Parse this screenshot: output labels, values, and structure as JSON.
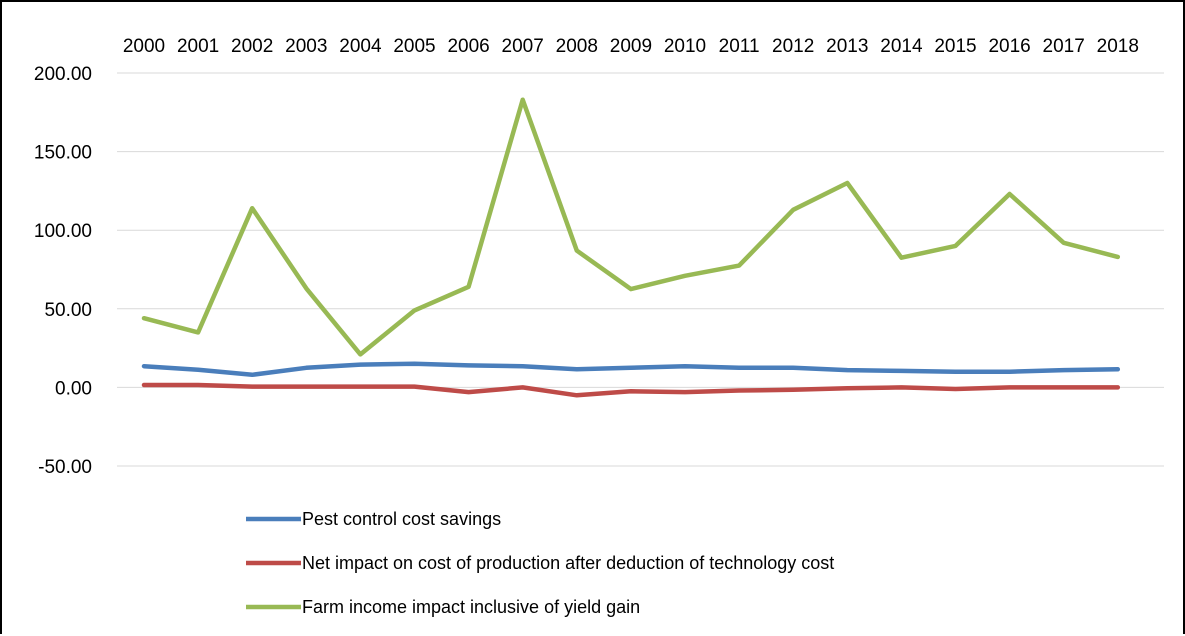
{
  "chart_data": {
    "type": "line",
    "title": "",
    "xlabel": "",
    "ylabel": "",
    "x": [
      "2000",
      "2001",
      "2002",
      "2003",
      "2004",
      "2005",
      "2006",
      "2007",
      "2008",
      "2009",
      "2010",
      "2011",
      "2012",
      "2013",
      "2014",
      "2015",
      "2016",
      "2017",
      "2018"
    ],
    "ylim": [
      -50,
      200
    ],
    "yticks": [
      "200.00",
      "150.00",
      "100.00",
      "50.00",
      "0.00",
      "-50.00"
    ],
    "ytick_values": [
      200,
      150,
      100,
      50,
      0,
      -50
    ],
    "grid": true,
    "legend_position": "bottom",
    "series": [
      {
        "name": "Pest control cost savings",
        "color": "#4a7ebb",
        "values": [
          13.5,
          11.2,
          8.0,
          12.5,
          14.5,
          15.0,
          14.0,
          13.5,
          11.5,
          12.5,
          13.5,
          12.5,
          12.5,
          11.0,
          10.5,
          10.0,
          10.0,
          11.0,
          11.5
        ]
      },
      {
        "name": "Net impact on cost of production after deduction of technology cost",
        "color": "#be4b48",
        "values": [
          1.5,
          1.5,
          0.5,
          0.5,
          0.5,
          0.5,
          -3.0,
          0.0,
          -5.0,
          -2.5,
          -3.0,
          -2.0,
          -1.5,
          -0.5,
          0.0,
          -1.0,
          0.0,
          0.0,
          0.0
        ]
      },
      {
        "name": "Farm income impact inclusive of yield gain",
        "color": "#98b954",
        "values": [
          44,
          35,
          114,
          63,
          21,
          49,
          64,
          183,
          87,
          62.5,
          71,
          77.5,
          113,
          130,
          82.5,
          90,
          123,
          92,
          83
        ]
      }
    ]
  }
}
